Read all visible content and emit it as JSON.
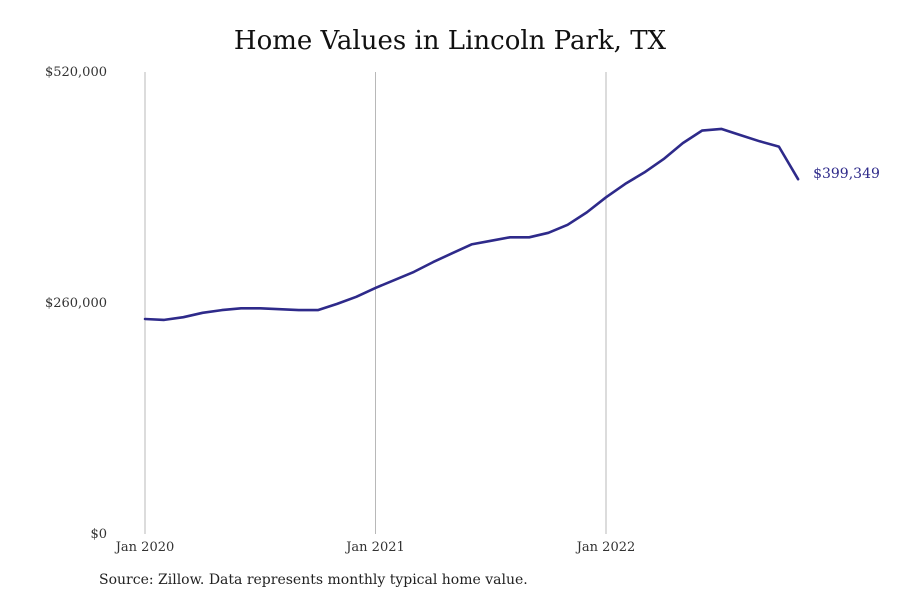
{
  "chart_data": {
    "type": "line",
    "title": "Home Values in Lincoln Park, TX",
    "xlabel": "",
    "ylabel": "",
    "ylim": [
      0,
      520000
    ],
    "y_ticks": [
      {
        "value": 0,
        "label": "$0"
      },
      {
        "value": 260000,
        "label": "$260,000"
      },
      {
        "value": 520000,
        "label": "$520,000"
      }
    ],
    "x_ticks": [
      {
        "value": "2020-01",
        "label": "Jan 2020"
      },
      {
        "value": "2021-01",
        "label": "Jan 2021"
      },
      {
        "value": "2022-01",
        "label": "Jan 2022"
      }
    ],
    "grid": "vertical lines at January of each year",
    "series": [
      {
        "color": "#2e2a8a",
        "x": [
          "2020-01",
          "2020-02",
          "2020-03",
          "2020-04",
          "2020-05",
          "2020-06",
          "2020-07",
          "2020-08",
          "2020-09",
          "2020-10",
          "2020-11",
          "2020-12",
          "2021-01",
          "2021-02",
          "2021-03",
          "2021-04",
          "2021-05",
          "2021-06",
          "2021-07",
          "2021-08",
          "2021-09",
          "2021-10",
          "2021-11",
          "2021-12",
          "2022-01",
          "2022-02",
          "2022-03",
          "2022-04",
          "2022-05",
          "2022-06",
          "2022-07",
          "2022-08",
          "2022-09",
          "2022-10",
          "2022-11"
        ],
        "values": [
          242000,
          241000,
          244000,
          249000,
          252000,
          254000,
          254000,
          253000,
          252000,
          252000,
          259000,
          267000,
          277000,
          286000,
          295000,
          306000,
          316000,
          326000,
          330000,
          334000,
          334000,
          339000,
          348000,
          362000,
          379000,
          394000,
          407000,
          422000,
          440000,
          454000,
          456000,
          449000,
          442000,
          436000,
          399349
        ]
      }
    ],
    "end_label": "$399,349"
  },
  "source": "Source: Zillow. Data represents monthly typical home value."
}
